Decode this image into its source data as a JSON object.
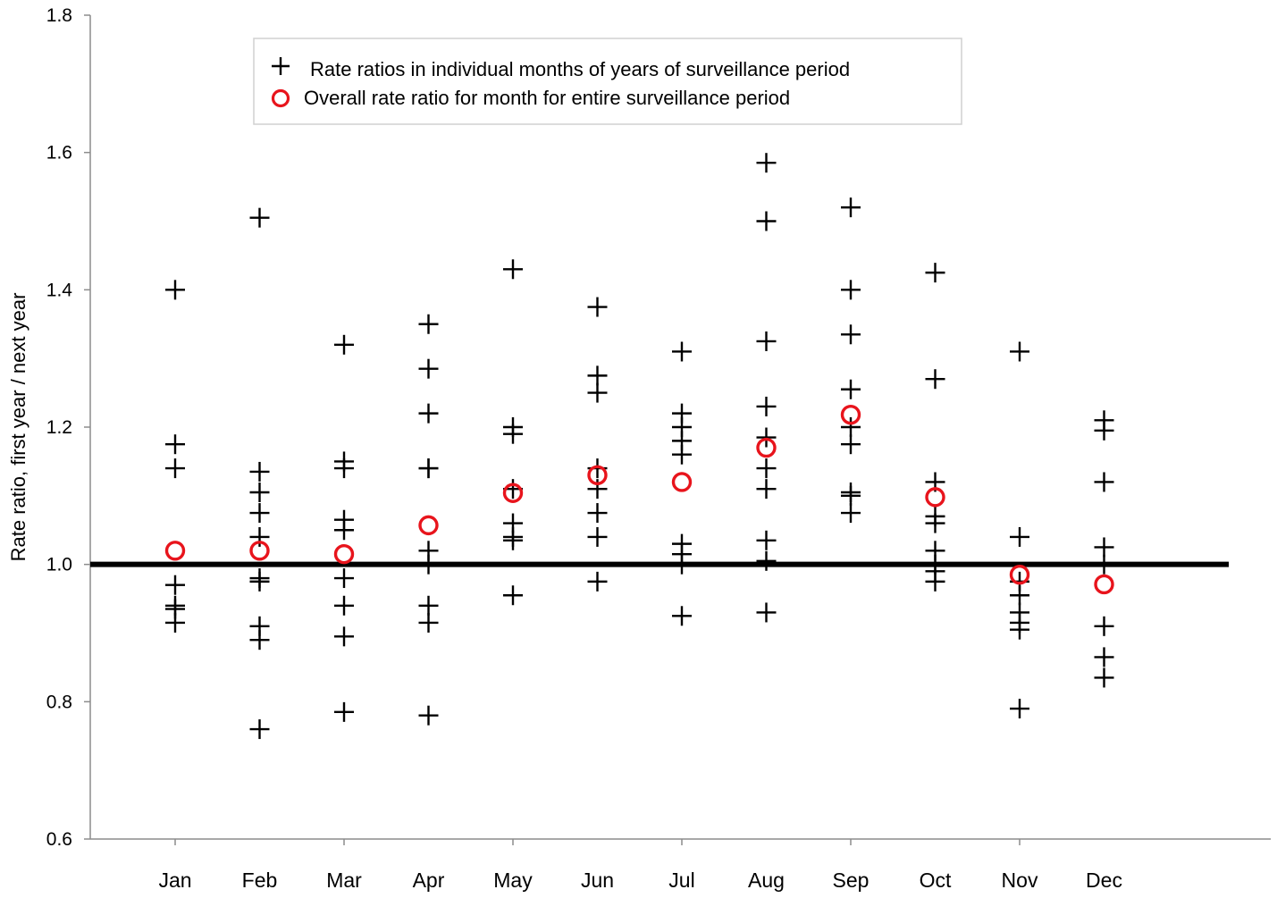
{
  "chart_data": {
    "type": "scatter",
    "title": "",
    "xlabel": "",
    "ylabel": "Rate ratio, first year / next year",
    "ylim": [
      0.6,
      1.8
    ],
    "yticks": [
      "0.6",
      "0.8",
      "1.0",
      "1.2",
      "1.4",
      "1.6",
      "1.8"
    ],
    "categories": [
      "Jan",
      "Feb",
      "Mar",
      "Apr",
      "May",
      "Jun",
      "Jul",
      "Aug",
      "Sep",
      "Oct",
      "Nov",
      "Dec"
    ],
    "reference_line": 1.0,
    "legend_position": "top-left",
    "grid": false,
    "series": [
      {
        "name": "Rate ratios in individual months of years of surveillance period",
        "marker": "plus",
        "color": "#000000",
        "values": [
          [
            1.4,
            1.175,
            1.14,
            0.97,
            0.94,
            0.935,
            0.915
          ],
          [
            1.505,
            1.135,
            1.105,
            1.075,
            1.04,
            0.98,
            0.975,
            0.91,
            0.89,
            0.76
          ],
          [
            1.32,
            1.15,
            1.14,
            1.065,
            1.05,
            0.98,
            0.94,
            0.895,
            0.785
          ],
          [
            1.35,
            1.285,
            1.22,
            1.14,
            1.14,
            1.02,
            1.0,
            0.94,
            0.915,
            0.78
          ],
          [
            1.43,
            1.2,
            1.19,
            1.11,
            1.06,
            1.04,
            1.035,
            0.955
          ],
          [
            1.375,
            1.275,
            1.25,
            1.14,
            1.11,
            1.075,
            1.04,
            0.975
          ],
          [
            1.31,
            1.22,
            1.2,
            1.18,
            1.16,
            1.03,
            1.015,
            1.0,
            0.925
          ],
          [
            1.585,
            1.5,
            1.325,
            1.23,
            1.185,
            1.14,
            1.11,
            1.035,
            1.005,
            0.93
          ],
          [
            1.52,
            1.4,
            1.335,
            1.255,
            1.2,
            1.175,
            1.105,
            1.1,
            1.075
          ],
          [
            1.425,
            1.27,
            1.12,
            1.07,
            1.06,
            1.02,
            1.0,
            0.99,
            0.975
          ],
          [
            1.31,
            1.04,
            0.975,
            0.955,
            0.93,
            0.915,
            0.905,
            0.79
          ],
          [
            1.21,
            1.195,
            1.12,
            1.025,
            1.0,
            0.91,
            0.865,
            0.835
          ]
        ]
      },
      {
        "name": "Overall rate ratio for month for entire surveillance period",
        "marker": "circle",
        "color": "#e8141c",
        "values": [
          1.02,
          1.02,
          1.015,
          1.057,
          1.104,
          1.13,
          1.12,
          1.17,
          1.218,
          1.098,
          0.985,
          0.971
        ]
      }
    ]
  }
}
